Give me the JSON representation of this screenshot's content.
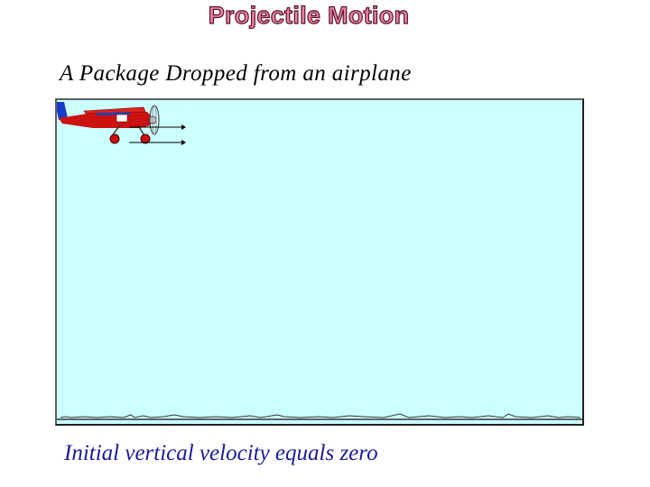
{
  "slide": {
    "title": "Projectile Motion",
    "subtitle": "A Package Dropped from an airplane",
    "caption": "Initial vertical velocity equals zero"
  },
  "scene": {
    "sky_color": "#ccffff",
    "airplane_color": "#cc1111",
    "airplane_tail_color": "#1a3acc",
    "vector_count": 2
  }
}
